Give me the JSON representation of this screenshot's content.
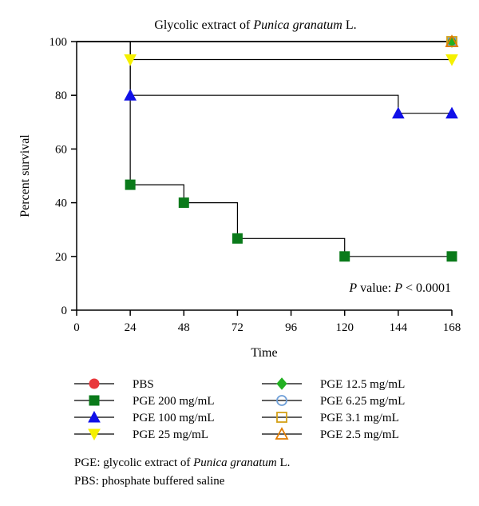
{
  "chart_data": {
    "type": "line",
    "title_prefix": "Glycolic extract of ",
    "title_italic": "Punica granatum",
    "title_suffix": " L.",
    "xlabel": "Time",
    "ylabel": "Percent survival",
    "xlim": [
      0,
      168
    ],
    "ylim": [
      0,
      100
    ],
    "x_ticks": [
      "0",
      "24",
      "48",
      "72",
      "96",
      "120",
      "144",
      "168"
    ],
    "y_ticks": [
      "0",
      "20",
      "40",
      "60",
      "80",
      "100"
    ],
    "step_plot": true,
    "series": [
      {
        "name": "PBS",
        "color": "#e8383b",
        "marker": "circle",
        "filled": true,
        "points": [
          [
            0,
            100
          ],
          [
            168,
            100
          ]
        ],
        "markers": [
          [
            168,
            100
          ]
        ]
      },
      {
        "name": "PGE 200 mg/mL",
        "color": "#0a7a1a",
        "marker": "square",
        "filled": true,
        "points": [
          [
            0,
            100
          ],
          [
            24,
            46.7
          ],
          [
            48,
            40
          ],
          [
            72,
            26.7
          ],
          [
            120,
            20
          ],
          [
            168,
            20
          ]
        ],
        "markers": [
          [
            24,
            46.7
          ],
          [
            48,
            40
          ],
          [
            72,
            26.7
          ],
          [
            120,
            20
          ],
          [
            168,
            20
          ]
        ]
      },
      {
        "name": "PGE 100 mg/mL",
        "color": "#1010e8",
        "marker": "triangle-up",
        "filled": true,
        "points": [
          [
            0,
            100
          ],
          [
            24,
            80
          ],
          [
            144,
            73.3
          ],
          [
            168,
            73.3
          ]
        ],
        "markers": [
          [
            24,
            80
          ],
          [
            144,
            73.3
          ],
          [
            168,
            73.3
          ]
        ]
      },
      {
        "name": "PGE 25 mg/mL",
        "color": "#f5f000",
        "marker": "triangle-down",
        "filled": true,
        "points": [
          [
            0,
            100
          ],
          [
            24,
            93.3
          ],
          [
            168,
            93.3
          ]
        ],
        "markers": [
          [
            24,
            93.3
          ],
          [
            168,
            93.3
          ]
        ]
      },
      {
        "name": "PGE 12.5 mg/mL",
        "color": "#22b022",
        "marker": "diamond",
        "filled": true,
        "points": [
          [
            0,
            100
          ],
          [
            168,
            100
          ]
        ],
        "markers": [
          [
            168,
            100
          ]
        ]
      },
      {
        "name": "PGE 6.25 mg/mL",
        "color": "#6f9fd8",
        "marker": "circle",
        "filled": false,
        "points": [
          [
            0,
            100
          ],
          [
            168,
            100
          ]
        ],
        "markers": [
          [
            168,
            100
          ]
        ]
      },
      {
        "name": "PGE 3.1 mg/mL",
        "color": "#d4a017",
        "marker": "square",
        "filled": false,
        "points": [
          [
            0,
            100
          ],
          [
            168,
            100
          ]
        ],
        "markers": [
          [
            168,
            100
          ]
        ]
      },
      {
        "name": "PGE 2.5 mg/mL",
        "color": "#e07b00",
        "marker": "triangle-up",
        "filled": false,
        "points": [
          [
            0,
            100
          ],
          [
            168,
            100
          ]
        ],
        "markers": [
          [
            168,
            100
          ]
        ]
      }
    ],
    "annotation": {
      "p_italic": "P",
      "middle": " value: ",
      "p2_italic": "P",
      "tail": " < 0.0001"
    },
    "legend_position": "bottom"
  },
  "footnotes": {
    "pge_prefix": "PGE: glycolic extract of ",
    "pge_italic": "Punica granatum",
    "pge_suffix": " L.",
    "pbs": "PBS: phosphate buffered saline"
  }
}
